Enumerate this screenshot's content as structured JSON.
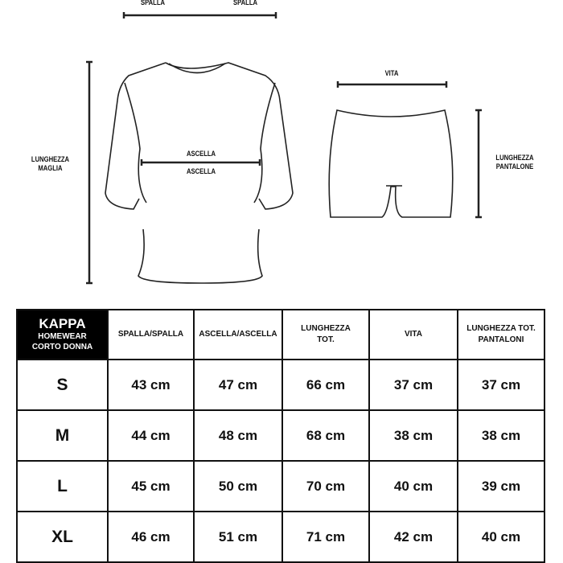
{
  "diagram": {
    "shoulder_labels": [
      "SPALLA",
      "SPALLA"
    ],
    "underarm_label_top": "ASCELLA",
    "underarm_label_bottom": "ASCELLA",
    "shirt_length_label": [
      "LUNGHEZZA",
      "MAGLIA"
    ],
    "waist_label": "VITA",
    "pants_length_label": [
      "LUNGHEZZA",
      "PANTALONE"
    ]
  },
  "table": {
    "brand": {
      "line1": "KAPPA",
      "line2": "HOMEWEAR",
      "line3": "CORTO DONNA"
    },
    "headers": [
      [
        "SPALLA/SPALLA"
      ],
      [
        "ASCELLA/ASCELLA"
      ],
      [
        "LUNGHEZZA",
        "TOT."
      ],
      [
        "VITA"
      ],
      [
        "LUNGHEZZA TOT.",
        "PANTALONI"
      ]
    ],
    "rows": [
      {
        "size": "S",
        "values": [
          "43 cm",
          "47 cm",
          "66 cm",
          "37 cm",
          "37 cm"
        ]
      },
      {
        "size": "M",
        "values": [
          "44 cm",
          "48 cm",
          "68 cm",
          "38 cm",
          "38 cm"
        ]
      },
      {
        "size": "L",
        "values": [
          "45 cm",
          "50 cm",
          "70 cm",
          "40 cm",
          "39 cm"
        ]
      },
      {
        "size": "XL",
        "values": [
          "46 cm",
          "51 cm",
          "71 cm",
          "42 cm",
          "40 cm"
        ]
      }
    ]
  }
}
